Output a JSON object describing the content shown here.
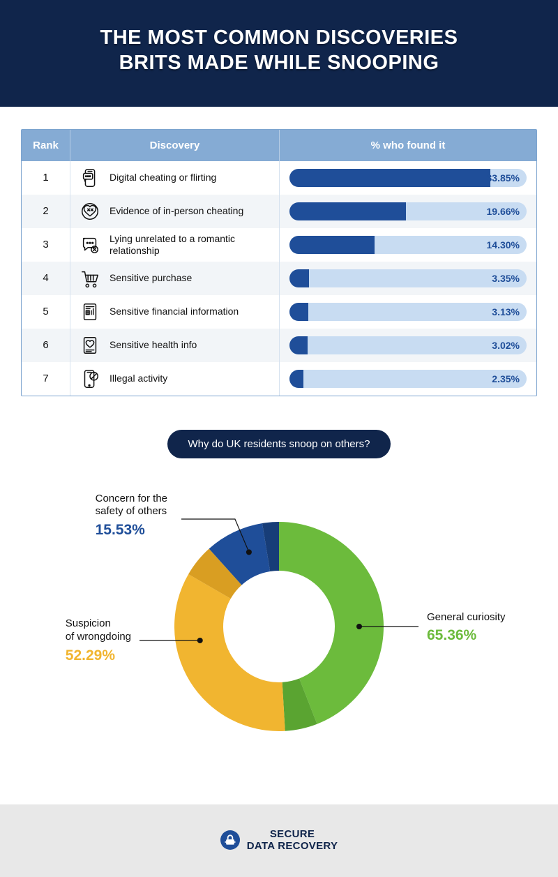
{
  "header": {
    "title_line1": "THE MOST COMMON DISCOVERIES",
    "title_line2": "BRITS MADE WHILE SNOOPING",
    "bg_color": "#10254b",
    "text_color": "#ffffff"
  },
  "table": {
    "header_bg": "#85abd4",
    "header_text": "#ffffff",
    "border_color": "#7ca4cf",
    "row_alt_bg": "#f2f5f8",
    "bar_track_color": "#c8dcf2",
    "bar_fill_color": "#1f4e99",
    "value_text_color": "#1f4e99",
    "columns": {
      "rank": "Rank",
      "discovery": "Discovery",
      "pct": "% who found it"
    },
    "max_value": 40,
    "rows": [
      {
        "rank": "1",
        "label": "Digital cheating or flirting",
        "value": 33.85,
        "pct": "33.85%",
        "icon": "phone-chat-icon"
      },
      {
        "rank": "2",
        "label": "Evidence of in-person cheating",
        "value": 19.66,
        "pct": "19.66%",
        "icon": "broken-heart-icon"
      },
      {
        "rank": "3",
        "label": "Lying unrelated to a romantic relationship",
        "value": 14.3,
        "pct": "14.30%",
        "icon": "chat-x-icon"
      },
      {
        "rank": "4",
        "label": "Sensitive purchase",
        "value": 3.35,
        "pct": "3.35%",
        "icon": "cart-icon"
      },
      {
        "rank": "5",
        "label": "Sensitive financial information",
        "value": 3.13,
        "pct": "3.13%",
        "icon": "finance-doc-icon"
      },
      {
        "rank": "6",
        "label": "Sensitive health info",
        "value": 3.02,
        "pct": "3.02%",
        "icon": "health-doc-icon"
      },
      {
        "rank": "7",
        "label": "Illegal activity",
        "value": 2.35,
        "pct": "2.35%",
        "icon": "phone-block-icon"
      }
    ]
  },
  "donut": {
    "title": "Why do UK residents snoop on others?",
    "outer_radius": 150,
    "inner_radius": 80,
    "slices": [
      {
        "label": "General curiosity",
        "value": 65.36,
        "pct": "65.36%",
        "color": "#6cbb3c",
        "shade": "#5aa431",
        "label_color": "#6cbb3c",
        "label_pos": "right",
        "anchor_angle": 90
      },
      {
        "label": "Suspicion of wrongdoing",
        "value": 52.29,
        "pct": "52.29%",
        "color": "#f1b530",
        "shade": "#d99e22",
        "label_color": "#f1b530",
        "label_pos": "left",
        "anchor_angle": 260
      },
      {
        "label": "Concern for the safety of others",
        "value": 15.53,
        "pct": "15.53%",
        "color": "#1f4e99",
        "shade": "#173d78",
        "label_color": "#1f4e99",
        "label_pos": "topleft",
        "anchor_angle": 338
      }
    ]
  },
  "footer": {
    "brand_accent": "#1f4e99",
    "brand_text_color": "#10254b",
    "brand_bold": "SECURE",
    "brand_rest": "DATA RECOVERY"
  }
}
